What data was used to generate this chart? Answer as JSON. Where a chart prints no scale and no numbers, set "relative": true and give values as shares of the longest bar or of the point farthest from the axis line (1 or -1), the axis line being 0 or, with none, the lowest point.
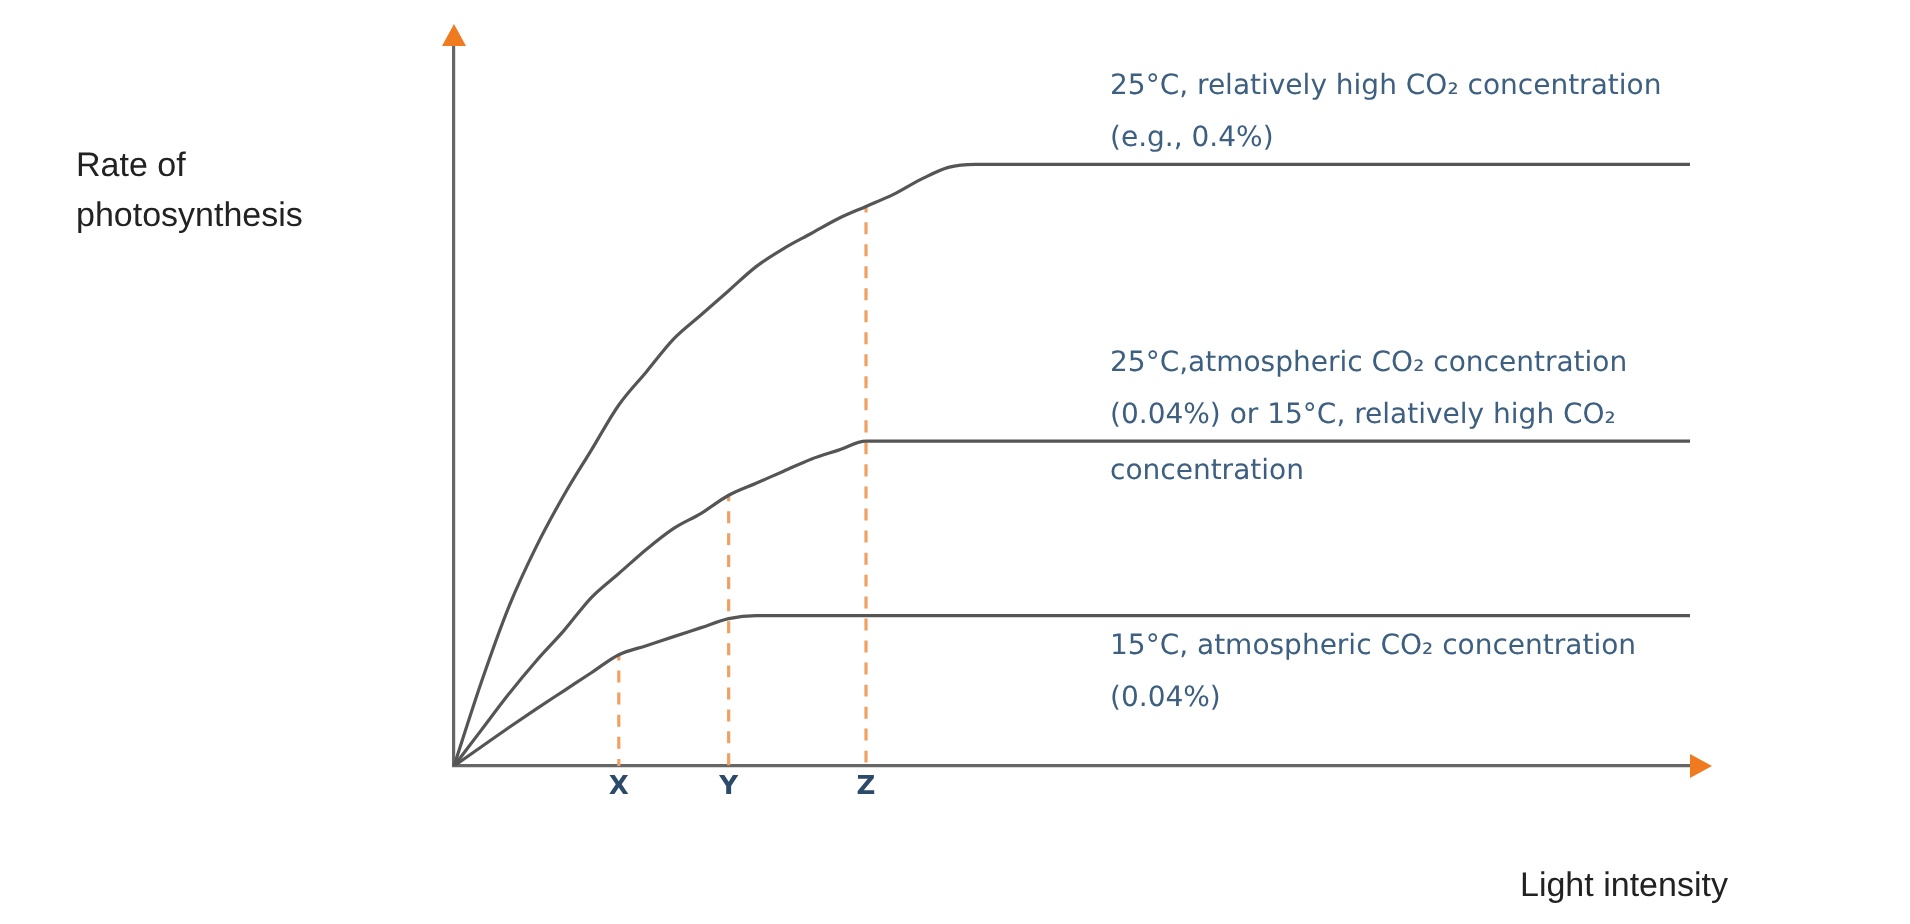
{
  "chart_data": {
    "type": "line",
    "xlabel": "Light intensity",
    "ylabel": "Rate of photosynthesis",
    "relative": true,
    "marker": "none",
    "categories": [
      null,
      null,
      null,
      null,
      null,
      null,
      "X",
      null,
      null,
      null,
      "Y",
      null,
      null,
      null,
      null,
      "Z",
      null,
      null,
      null,
      null,
      null,
      null,
      null,
      null,
      null,
      null,
      null,
      null,
      null,
      null,
      null,
      null,
      null,
      null,
      null,
      null,
      null,
      null,
      null,
      null,
      null,
      null,
      null,
      null,
      null,
      null
    ],
    "series": [
      {
        "name": "25°C, relatively high CO₂ concentration (e.g., 0.4%)",
        "color": "#555555",
        "line_style": "solid",
        "values": [
          0,
          0.14,
          0.265,
          0.365,
          0.45,
          0.525,
          0.6,
          0.655,
          0.71,
          0.75,
          0.79,
          0.83,
          0.86,
          0.885,
          0.91,
          0.93,
          0.95,
          0.975,
          0.995,
          1,
          1,
          1,
          1,
          1,
          1,
          1,
          1,
          1,
          1,
          1,
          1,
          1,
          1,
          1,
          1,
          1,
          1,
          1,
          1,
          1,
          1,
          1,
          1,
          1,
          1,
          1
        ]
      },
      {
        "name": "25°C,atmospheric CO₂ concentration (0.04%) or 15°C, relatively high CO₂ concentration",
        "color": "#555555",
        "line_style": "solid",
        "values": [
          0,
          0.06,
          0.12,
          0.175,
          0.225,
          0.28,
          0.32,
          0.36,
          0.395,
          0.42,
          0.45,
          0.47,
          0.49,
          0.51,
          0.525,
          0.54,
          0.54,
          0.54,
          0.54,
          0.54,
          0.54,
          0.54,
          0.54,
          0.54,
          0.54,
          0.54,
          0.54,
          0.54,
          0.54,
          0.54,
          0.54,
          0.54,
          0.54,
          0.54,
          0.54,
          0.54,
          0.54,
          0.54,
          0.54,
          0.54,
          0.54,
          0.54,
          0.54,
          0.54,
          0.54,
          0.54
        ]
      },
      {
        "name": "15°C, atmospheric CO₂ concentration (0.04%)",
        "color": "#555555",
        "line_style": "solid",
        "values": [
          0,
          0.032,
          0.064,
          0.095,
          0.125,
          0.155,
          0.185,
          0.2,
          0.215,
          0.23,
          0.245,
          0.25,
          0.25,
          0.25,
          0.25,
          0.25,
          0.25,
          0.25,
          0.25,
          0.25,
          0.25,
          0.25,
          0.25,
          0.25,
          0.25,
          0.25,
          0.25,
          0.25,
          0.25,
          0.25,
          0.25,
          0.25,
          0.25,
          0.25,
          0.25,
          0.25,
          0.25,
          0.25,
          0.25,
          0.25,
          0.25,
          0.25,
          0.25,
          0.25,
          0.25,
          0.25
        ]
      },
      {
        "color": "#f0a060",
        "line_style": "dashed",
        "x": [
          "X",
          "X"
        ],
        "values": [
          0,
          0.185
        ]
      },
      {
        "color": "#f0a060",
        "line_style": "dashed",
        "x": [
          "Y",
          "Y"
        ],
        "values": [
          0,
          0.45
        ]
      },
      {
        "color": "#f0a060",
        "line_style": "dashed",
        "x": [
          "Z",
          "Z"
        ],
        "values": [
          0,
          0.93
        ]
      }
    ]
  }
}
